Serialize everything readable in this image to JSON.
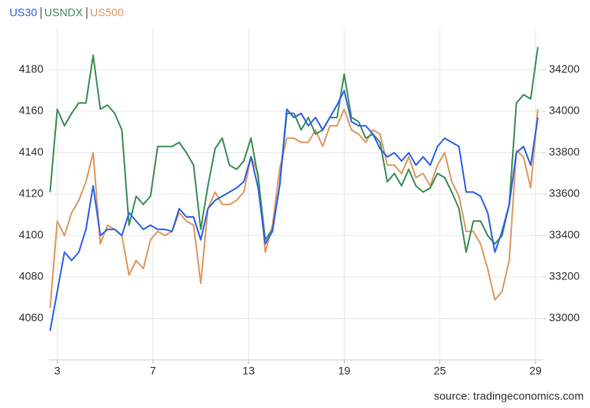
{
  "chart_data": {
    "type": "line",
    "source": "source: tradingeconomics.com",
    "x": [
      -0.3,
      0,
      0.3,
      0.6,
      0.9,
      1.2,
      1.5,
      1.8,
      2.1,
      2.4,
      2.7,
      3,
      3.3,
      3.6,
      3.9,
      4.2,
      4.5,
      4.8,
      5.1,
      5.4,
      5.7,
      6,
      6.3,
      6.6,
      6.9,
      7.2,
      7.5,
      7.8,
      8.1,
      8.4,
      8.7,
      9,
      9.3,
      9.6,
      9.9,
      10.2,
      10.5,
      10.8,
      11.1,
      11.4,
      11.7,
      12,
      12.3,
      12.6,
      12.9,
      13.2,
      13.5,
      13.8,
      14.1,
      14.4,
      14.7,
      15,
      15.3,
      15.6,
      15.9,
      16.2,
      16.5,
      16.8,
      17.1,
      17.4,
      17.7,
      18,
      18.3,
      18.6,
      18.9,
      19.2,
      19.5,
      19.8,
      20.1
    ],
    "xlim": [
      -0.35,
      20.3
    ],
    "xticks": [
      {
        "value": 0,
        "label": "3"
      },
      {
        "value": 4,
        "label": "7"
      },
      {
        "value": 8,
        "label": "13"
      },
      {
        "value": 12,
        "label": "19"
      },
      {
        "value": 16,
        "label": "25"
      },
      {
        "value": 20,
        "label": "29"
      }
    ],
    "ylim": [
      4040,
      4200
    ],
    "yticks": [
      4060,
      4080,
      4100,
      4120,
      4140,
      4160,
      4180
    ],
    "y2lim": [
      32800,
      34400
    ],
    "y2ticks": [
      33000,
      33200,
      33400,
      33600,
      33800,
      34000,
      34200
    ],
    "grid": true,
    "series": [
      {
        "name": "US30",
        "color": "#2f63e8",
        "axis": "y2",
        "values": [
          32940,
          33130,
          33320,
          33280,
          33320,
          33430,
          33640,
          33400,
          33430,
          33430,
          33400,
          33510,
          33470,
          33430,
          33450,
          33430,
          33430,
          33420,
          33530,
          33490,
          33490,
          33380,
          33530,
          33570,
          33590,
          33610,
          33630,
          33660,
          33780,
          33630,
          33360,
          33420,
          33640,
          34010,
          33970,
          33990,
          33930,
          33970,
          33910,
          33970,
          34030,
          34100,
          33950,
          33930,
          33930,
          33890,
          33820,
          33780,
          33800,
          33760,
          33800,
          33740,
          33780,
          33740,
          33830,
          33870,
          33850,
          33830,
          33610,
          33610,
          33590,
          33510,
          33320,
          33420,
          33550,
          33800,
          33830,
          33740,
          33970
        ]
      },
      {
        "name": "USNDX",
        "color": "#3d9058",
        "values": [
          4121,
          4161,
          4153,
          4159,
          4164,
          4164,
          4187,
          4161,
          4163,
          4159,
          4151,
          4105,
          4119,
          4115,
          4119,
          4143,
          4143,
          4143,
          4145,
          4140,
          4134,
          4103,
          4124,
          4142,
          4147,
          4134,
          4132,
          4136,
          4147,
          4128,
          4098,
          4103,
          4124,
          4159,
          4159,
          4151,
          4157,
          4149,
          4151,
          4157,
          4157,
          4178,
          4157,
          4155,
          4147,
          4149,
          4145,
          4126,
          4130,
          4124,
          4132,
          4124,
          4121,
          4123,
          4130,
          4128,
          4121,
          4113,
          4092,
          4107,
          4107,
          4100,
          4096,
          4100,
          4115,
          4164,
          4168,
          4166,
          4191
        ]
      },
      {
        "name": "US500",
        "color": "#de9a62",
        "values": [
          4065,
          4107,
          4100,
          4111,
          4117,
          4126,
          4140,
          4096,
          4105,
          4103,
          4100,
          4081,
          4088,
          4084,
          4098,
          4102,
          4100,
          4102,
          4111,
          4107,
          4105,
          4077,
          4113,
          4121,
          4115,
          4115,
          4117,
          4121,
          4138,
          4130,
          4092,
          4105,
          4132,
          4147,
          4147,
          4145,
          4145,
          4151,
          4143,
          4153,
          4153,
          4161,
          4151,
          4149,
          4145,
          4151,
          4149,
          4134,
          4134,
          4130,
          4138,
          4128,
          4130,
          4124,
          4134,
          4140,
          4126,
          4119,
          4102,
          4102,
          4096,
          4084,
          4069,
          4073,
          4088,
          4141,
          4138,
          4123,
          4161
        ]
      }
    ]
  }
}
